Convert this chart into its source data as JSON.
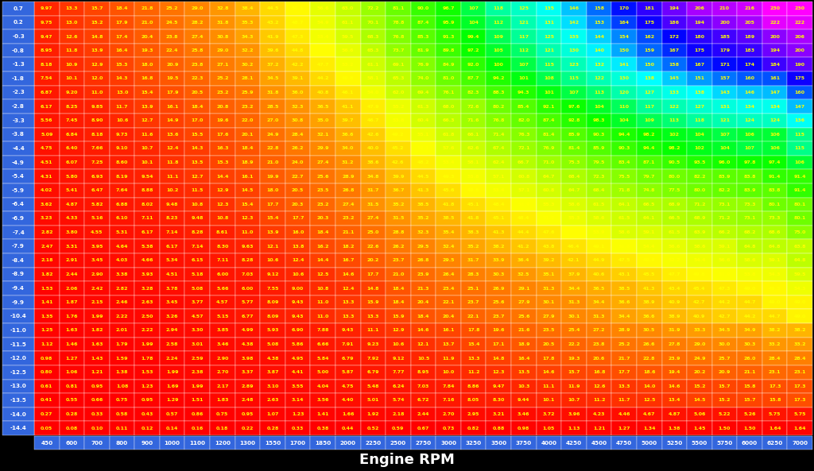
{
  "row_labels": [
    "0.7",
    "0.2",
    "-0.3",
    "-0.8",
    "-1.3",
    "-1.8",
    "-2.3",
    "-2.8",
    "-3.3",
    "-3.8",
    "-4.4",
    "-4.9",
    "-5.4",
    "-5.9",
    "-6.4",
    "-6.9",
    "-7.4",
    "-7.9",
    "-8.4",
    "-8.9",
    "-9.4",
    "-9.9",
    "-10.4",
    "-11.0",
    "-11.5",
    "-12.0",
    "-12.5",
    "-13.0",
    "-13.5",
    "-14.0",
    "-14.4"
  ],
  "col_labels": [
    "450",
    "600",
    "700",
    "800",
    "900",
    "1000",
    "1100",
    "1200",
    "1300",
    "1550",
    "1700",
    "1850",
    "2000",
    "2250",
    "2500",
    "2750",
    "3000",
    "3250",
    "3500",
    "3750",
    "4000",
    "4250",
    "4500",
    "4750",
    "5000",
    "5250",
    "5500",
    "5750",
    "6000",
    "6250",
    "7000"
  ],
  "title": "Engine RPM",
  "data": [
    [
      9.97,
      13.3,
      15.7,
      18.4,
      21.8,
      25.2,
      29.0,
      32.8,
      38.4,
      44.5,
      50.3,
      56.6,
      63.0,
      72.2,
      81.1,
      90.0,
      96.7,
      107,
      118,
      125,
      135,
      146,
      158,
      170,
      181,
      194,
      206,
      210,
      216,
      230,
      230
    ],
    [
      9.75,
      13.0,
      15.2,
      17.9,
      21.0,
      24.5,
      28.2,
      31.8,
      35.3,
      43.2,
      48.7,
      54.9,
      61.1,
      70.1,
      78.8,
      87.4,
      95.9,
      104,
      112,
      121,
      131,
      142,
      153,
      164,
      175,
      186,
      194,
      200,
      205,
      222,
      222
    ],
    [
      9.47,
      12.6,
      14.8,
      17.4,
      20.4,
      23.8,
      27.4,
      30.8,
      34.3,
      41.9,
      47.3,
      53.4,
      59.5,
      68.3,
      76.8,
      85.3,
      91.3,
      99.4,
      109,
      117,
      125,
      135,
      144,
      154,
      162,
      172,
      180,
      185,
      189,
      200,
      206
    ],
    [
      8.95,
      11.8,
      13.9,
      16.4,
      19.3,
      22.4,
      25.8,
      29.0,
      32.2,
      39.6,
      44.8,
      50.5,
      56.6,
      65.3,
      73.7,
      81.9,
      89.8,
      97.2,
      105,
      112,
      121,
      130,
      140,
      150,
      159,
      167,
      175,
      179,
      183,
      194,
      200
    ],
    [
      8.18,
      10.9,
      12.9,
      15.3,
      18.0,
      20.9,
      23.8,
      27.1,
      30.2,
      37.2,
      42.2,
      47.7,
      53.2,
      61.1,
      69.1,
      76.9,
      84.9,
      92.0,
      100,
      107,
      115,
      123,
      132,
      141,
      150,
      158,
      167,
      171,
      174,
      184,
      190
    ],
    [
      7.54,
      10.1,
      12.0,
      14.3,
      16.8,
      19.5,
      22.3,
      25.2,
      28.1,
      34.5,
      39.1,
      44.2,
      49.8,
      58.1,
      65.3,
      74.0,
      81.0,
      87.7,
      94.2,
      101,
      108,
      115,
      122,
      130,
      138,
      145,
      151,
      157,
      160,
      161,
      175
    ],
    [
      6.87,
      9.2,
      11.0,
      13.0,
      15.4,
      17.9,
      20.5,
      23.2,
      25.9,
      31.8,
      36.0,
      40.8,
      46.1,
      54.0,
      62.0,
      69.4,
      76.1,
      82.3,
      88.3,
      94.3,
      101,
      107,
      113,
      120,
      127,
      133,
      138,
      143,
      146,
      147,
      160
    ],
    [
      6.17,
      8.25,
      9.85,
      11.7,
      13.9,
      16.1,
      18.4,
      20.8,
      23.2,
      28.5,
      32.3,
      36.5,
      41.1,
      47.9,
      55.2,
      61.3,
      68.0,
      72.6,
      80.2,
      85.4,
      92.1,
      97.6,
      104,
      110,
      117,
      122,
      127,
      131,
      134,
      134,
      147
    ],
    [
      5.56,
      7.45,
      8.9,
      10.6,
      12.7,
      14.9,
      17.0,
      19.6,
      22.0,
      27.0,
      30.8,
      35.0,
      39.7,
      46.7,
      53.8,
      60.4,
      66.3,
      71.6,
      76.8,
      82.0,
      87.4,
      92.8,
      98.3,
      104,
      109,
      113,
      118,
      121,
      124,
      124,
      136
    ],
    [
      5.09,
      6.84,
      8.18,
      9.73,
      11.6,
      13.6,
      15.5,
      17.6,
      20.1,
      24.9,
      28.4,
      32.1,
      36.6,
      42.6,
      49.2,
      55.1,
      61.8,
      66.1,
      71.4,
      76.3,
      81.4,
      85.9,
      90.3,
      94.4,
      98.2,
      102,
      104,
      107,
      106,
      106,
      115
    ],
    [
      4.75,
      6.4,
      7.66,
      9.1,
      10.7,
      12.4,
      14.3,
      16.3,
      18.4,
      22.8,
      26.2,
      29.9,
      34.0,
      40.0,
      45.2,
      52.1,
      57.6,
      62.6,
      67.4,
      72.1,
      76.9,
      81.4,
      85.9,
      90.3,
      94.4,
      98.2,
      102,
      104,
      107,
      106,
      115
    ],
    [
      4.51,
      6.07,
      7.25,
      8.6,
      10.1,
      11.8,
      13.5,
      15.3,
      18.9,
      21.0,
      24.0,
      27.4,
      31.2,
      38.6,
      42.6,
      48.2,
      53.4,
      58.1,
      62.4,
      66.7,
      71.0,
      75.3,
      79.5,
      83.4,
      87.1,
      90.5,
      93.5,
      96.0,
      97.8,
      97.4,
      106
    ],
    [
      4.31,
      5.8,
      6.93,
      8.19,
      9.54,
      11.1,
      12.7,
      14.4,
      16.1,
      19.9,
      22.7,
      25.6,
      28.9,
      34.8,
      39.9,
      44.5,
      49.3,
      53.8,
      57.1,
      60.8,
      64.7,
      68.4,
      72.3,
      75.5,
      79.7,
      80.0,
      82.2,
      83.9,
      83.8,
      91.4,
      91.4
    ],
    [
      4.02,
      5.41,
      6.47,
      7.64,
      8.88,
      10.2,
      11.5,
      12.9,
      14.5,
      18.0,
      20.5,
      23.5,
      26.8,
      31.7,
      36.7,
      41.3,
      45.6,
      49.6,
      53.4,
      57.1,
      60.8,
      64.7,
      68.4,
      71.8,
      74.8,
      77.5,
      80.0,
      82.2,
      83.9,
      83.8,
      91.4
    ],
    [
      3.62,
      4.87,
      5.82,
      6.88,
      8.02,
      9.48,
      10.8,
      12.3,
      15.4,
      17.7,
      20.3,
      23.2,
      27.4,
      31.5,
      35.2,
      38.5,
      41.8,
      45.1,
      48.4,
      51.9,
      55.3,
      58.6,
      61.5,
      64.1,
      66.5,
      68.9,
      71.2,
      73.1,
      73.3,
      80.1,
      80.1
    ],
    [
      3.23,
      4.33,
      5.16,
      6.1,
      7.11,
      8.23,
      9.48,
      10.8,
      12.3,
      15.4,
      17.7,
      20.3,
      23.2,
      27.4,
      31.5,
      35.2,
      38.5,
      41.8,
      45.1,
      48.4,
      51.9,
      55.3,
      58.6,
      61.5,
      64.1,
      66.5,
      68.9,
      71.2,
      73.1,
      73.3,
      80.1
    ],
    [
      2.82,
      3.8,
      4.55,
      5.31,
      6.17,
      7.14,
      8.28,
      8.61,
      11.0,
      13.9,
      16.0,
      18.4,
      21.1,
      25.0,
      28.8,
      32.3,
      35.4,
      38.3,
      41.3,
      44.4,
      47.6,
      50.8,
      53.9,
      58.6,
      59.1,
      61.5,
      63.9,
      66.2,
      68.2,
      68.6,
      75.0
    ],
    [
      2.47,
      3.31,
      3.95,
      4.64,
      5.38,
      6.17,
      7.14,
      8.3,
      9.63,
      12.1,
      13.8,
      16.2,
      18.2,
      22.6,
      26.2,
      29.5,
      32.4,
      35.2,
      38.2,
      41.2,
      43.8,
      46.4,
      49.1,
      51.8,
      54.4,
      56.6,
      58.6,
      59.1,
      64.8,
      64.8,
      63.8
    ],
    [
      2.18,
      2.91,
      3.45,
      4.03,
      4.66,
      5.34,
      6.15,
      7.11,
      8.28,
      10.6,
      12.4,
      14.4,
      16.7,
      20.2,
      23.7,
      26.8,
      29.5,
      31.7,
      33.9,
      36.4,
      39.2,
      42.1,
      44.9,
      47.5,
      49.9,
      52.2,
      54.4,
      56.6,
      58.6,
      59.1,
      64.8
    ],
    [
      1.82,
      2.44,
      2.9,
      3.38,
      3.93,
      4.51,
      5.18,
      6.0,
      7.03,
      9.12,
      10.6,
      12.5,
      14.6,
      17.7,
      21.0,
      23.9,
      26.4,
      28.3,
      30.3,
      32.5,
      35.1,
      37.9,
      40.6,
      43.1,
      45.5,
      47.7,
      49.8,
      51.9,
      53.8,
      54.3,
      59.5
    ],
    [
      1.53,
      2.06,
      2.42,
      2.82,
      3.28,
      3.78,
      5.08,
      5.66,
      6.0,
      7.55,
      9.0,
      10.8,
      12.4,
      14.8,
      18.4,
      21.3,
      23.4,
      25.1,
      26.9,
      29.1,
      31.3,
      34.4,
      36.5,
      38.5,
      41.3,
      43.4,
      45.4,
      47.3,
      49.0,
      49.5,
      54.3
    ],
    [
      1.41,
      1.87,
      2.15,
      2.46,
      2.63,
      3.45,
      3.77,
      4.57,
      5.77,
      8.09,
      9.43,
      11.0,
      13.3,
      15.9,
      18.4,
      20.4,
      22.1,
      23.7,
      25.6,
      27.9,
      30.1,
      31.3,
      34.4,
      36.6,
      38.9,
      40.9,
      42.7,
      44.2,
      44.7,
      49.0,
      49.0
    ],
    [
      1.35,
      1.76,
      1.99,
      2.22,
      2.5,
      3.26,
      4.57,
      5.15,
      6.77,
      8.09,
      9.43,
      11.0,
      13.3,
      13.3,
      15.9,
      18.4,
      20.4,
      22.1,
      23.7,
      25.6,
      27.9,
      30.1,
      31.3,
      34.4,
      36.6,
      38.9,
      40.9,
      42.7,
      44.2,
      44.7,
      49.0
    ],
    [
      1.25,
      1.63,
      1.82,
      2.01,
      2.22,
      2.94,
      3.3,
      3.85,
      4.99,
      5.93,
      6.9,
      7.88,
      9.43,
      11.1,
      12.9,
      14.6,
      16.1,
      17.8,
      19.6,
      21.6,
      23.5,
      25.4,
      27.2,
      28.9,
      30.5,
      31.9,
      33.3,
      34.5,
      34.9,
      38.2,
      38.2
    ],
    [
      1.12,
      1.46,
      1.63,
      1.79,
      1.99,
      2.58,
      3.01,
      3.46,
      4.38,
      5.08,
      5.86,
      6.66,
      7.91,
      9.23,
      10.6,
      12.1,
      13.7,
      15.4,
      17.1,
      18.9,
      20.5,
      22.2,
      23.8,
      25.2,
      26.6,
      27.8,
      29.0,
      30.0,
      30.3,
      33.2,
      33.2
    ],
    [
      0.98,
      1.27,
      1.43,
      1.59,
      1.78,
      2.24,
      2.59,
      2.9,
      3.98,
      4.38,
      4.95,
      5.84,
      6.79,
      7.92,
      9.12,
      10.5,
      11.9,
      13.3,
      14.8,
      16.4,
      17.8,
      19.3,
      20.6,
      21.7,
      22.8,
      23.9,
      24.9,
      25.7,
      26.0,
      28.4,
      28.4
    ],
    [
      0.8,
      1.06,
      1.21,
      1.38,
      1.53,
      1.99,
      2.38,
      2.7,
      3.37,
      3.87,
      4.41,
      5.0,
      5.87,
      6.79,
      7.77,
      8.95,
      10.0,
      11.2,
      12.3,
      13.5,
      14.6,
      15.7,
      16.8,
      17.7,
      18.6,
      19.4,
      20.2,
      20.9,
      21.1,
      23.1,
      23.1
    ],
    [
      0.61,
      0.81,
      0.95,
      1.08,
      1.23,
      1.69,
      1.99,
      2.17,
      2.89,
      3.1,
      3.55,
      4.04,
      4.75,
      5.48,
      6.24,
      7.03,
      7.84,
      8.86,
      9.47,
      10.3,
      11.1,
      11.9,
      12.6,
      13.3,
      14.0,
      14.6,
      15.2,
      15.7,
      15.8,
      17.3,
      17.3
    ],
    [
      0.41,
      0.55,
      0.66,
      0.75,
      0.95,
      1.29,
      1.51,
      1.83,
      2.48,
      2.63,
      3.14,
      3.56,
      4.4,
      5.01,
      5.74,
      6.72,
      7.16,
      8.05,
      8.3,
      9.44,
      10.1,
      10.7,
      11.2,
      11.7,
      12.5,
      13.4,
      14.5,
      15.2,
      15.7,
      15.8,
      17.3
    ],
    [
      0.27,
      0.28,
      0.33,
      0.58,
      0.43,
      0.57,
      0.86,
      0.75,
      0.95,
      1.07,
      1.23,
      1.41,
      1.66,
      1.92,
      2.18,
      2.44,
      2.7,
      2.95,
      3.21,
      3.46,
      3.72,
      3.96,
      4.23,
      4.46,
      4.67,
      4.87,
      5.06,
      5.22,
      5.26,
      5.75,
      5.75
    ],
    [
      0.05,
      0.08,
      0.1,
      0.11,
      0.12,
      0.14,
      0.16,
      0.18,
      0.22,
      0.28,
      0.33,
      0.38,
      0.44,
      0.52,
      0.59,
      0.67,
      0.73,
      0.82,
      0.88,
      0.98,
      1.05,
      1.13,
      1.21,
      1.27,
      1.34,
      1.38,
      1.45,
      1.5,
      1.5,
      1.64,
      1.64
    ]
  ],
  "background_color": "#000000",
  "header_bg": "#3366dd",
  "cell_text_color": "#ffff00",
  "colormap_colors": [
    "#ff0000",
    "#ff2200",
    "#ff5500",
    "#ff8800",
    "#ffbb00",
    "#ffff00",
    "#aaff00",
    "#55ff00",
    "#00ff00",
    "#00ffaa",
    "#00ffff",
    "#00aaff",
    "#0055ff",
    "#0000ff",
    "#5500ff",
    "#aa00ff",
    "#ff00ff"
  ],
  "colormap_values": [
    0.0,
    0.04,
    0.08,
    0.13,
    0.17,
    0.22,
    0.3,
    0.37,
    0.43,
    0.52,
    0.6,
    0.65,
    0.7,
    0.75,
    0.82,
    0.9,
    1.0
  ],
  "vmin": 0,
  "vmax": 230,
  "xlabel": "Engine RPM",
  "xlabel_fontsize": 13
}
